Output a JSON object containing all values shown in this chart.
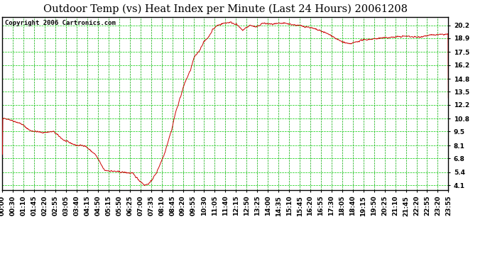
{
  "title": "Outdoor Temp (vs) Heat Index per Minute (Last 24 Hours) 20061208",
  "copyright": "Copyright 2006 Cartronics.com",
  "line_color": "#cc0000",
  "background_color": "#ffffff",
  "plot_bg_color": "#ffffff",
  "grid_color_h": "#00cc00",
  "grid_color_v": "#00aa00",
  "y_ticks": [
    4.1,
    5.4,
    6.8,
    8.1,
    9.5,
    10.8,
    12.2,
    13.5,
    14.8,
    16.2,
    17.5,
    18.9,
    20.2
  ],
  "ylim": [
    3.6,
    21.0
  ],
  "x_labels": [
    "00:00",
    "00:30",
    "01:10",
    "01:45",
    "02:20",
    "02:55",
    "03:05",
    "03:40",
    "04:15",
    "04:50",
    "05:15",
    "05:50",
    "06:25",
    "07:00",
    "07:35",
    "08:10",
    "08:45",
    "09:20",
    "09:55",
    "10:30",
    "11:05",
    "11:40",
    "12:15",
    "12:50",
    "13:25",
    "14:00",
    "14:35",
    "15:10",
    "15:45",
    "16:20",
    "16:55",
    "17:30",
    "18:05",
    "18:40",
    "19:15",
    "19:50",
    "20:25",
    "21:10",
    "21:45",
    "22:20",
    "22:55",
    "23:20",
    "23:55"
  ],
  "num_points": 1440,
  "title_fontsize": 10.5,
  "copyright_fontsize": 6.5,
  "tick_fontsize": 6.5
}
